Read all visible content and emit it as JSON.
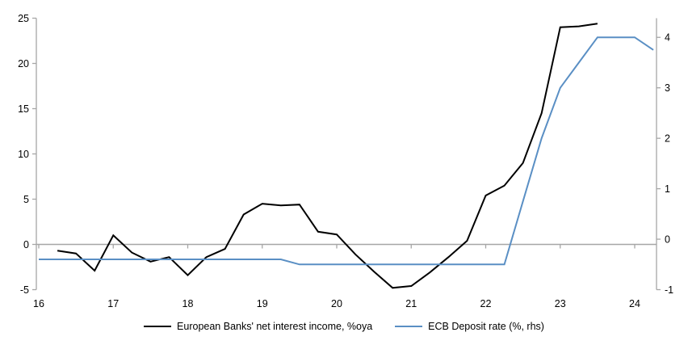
{
  "chart_data": {
    "type": "line",
    "title": "",
    "xlabel": "",
    "ylabel_left": "",
    "ylabel_right": "",
    "x_ticks": [
      16,
      17,
      18,
      19,
      20,
      21,
      22,
      23,
      24
    ],
    "lhs_ticks": [
      25,
      20,
      15,
      10,
      5,
      0,
      -5
    ],
    "rhs_ticks": [
      4,
      3,
      2,
      1,
      0,
      -1
    ],
    "lhs_ylim": [
      -5,
      25
    ],
    "rhs_ylim": [
      -1,
      4.38
    ],
    "x_range_years": [
      16.0,
      24.25
    ],
    "grid": "zero-line-only",
    "legend_position": "bottom-center",
    "axis_color": "#a6a6a6",
    "tick_label_color": "#000000",
    "series": [
      {
        "name": "European Banks' net interest income, %oya",
        "axis": "lhs",
        "color": "#000000",
        "x_start": 16.25,
        "x_step": 0.25,
        "values": [
          -0.7,
          -1.0,
          -2.9,
          1.0,
          -0.9,
          -1.9,
          -1.4,
          -3.4,
          -1.4,
          -0.5,
          3.3,
          4.5,
          4.3,
          4.4,
          1.4,
          1.1,
          -1.1,
          -3.0,
          -4.8,
          -4.6,
          -3.1,
          -1.4,
          0.4,
          5.4,
          6.5,
          9.0,
          14.5,
          24.0,
          24.1,
          24.4
        ]
      },
      {
        "name": "ECB Deposit rate (%, rhs)",
        "axis": "rhs",
        "color": "#5a8fc4",
        "x_start": 16.0,
        "x_step": 0.25,
        "values": [
          -0.4,
          -0.4,
          -0.4,
          -0.4,
          -0.4,
          -0.4,
          -0.4,
          -0.4,
          -0.4,
          -0.4,
          -0.4,
          -0.4,
          -0.4,
          -0.4,
          -0.5,
          -0.5,
          -0.5,
          -0.5,
          -0.5,
          -0.5,
          -0.5,
          -0.5,
          -0.5,
          -0.5,
          -0.5,
          -0.5,
          0.75,
          2.0,
          3.0,
          3.5,
          4.0,
          4.0,
          4.0,
          3.75
        ]
      }
    ]
  }
}
